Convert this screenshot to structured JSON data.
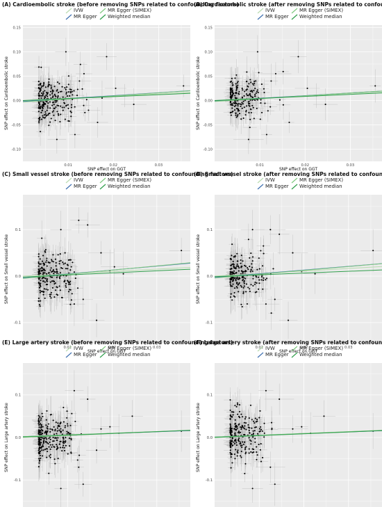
{
  "chart_data": [
    {
      "type": "scatter",
      "title": "(A) Cardioembolic stroke (before removing SNPs related to confounding factors)",
      "xlabel": "SNP effect on GGT",
      "ylabel": "SNP effect on Cardioembolic stroke",
      "xlim": [
        0.0,
        0.037
      ],
      "ylim": [
        -0.125,
        0.155
      ],
      "xticks": [
        0.01,
        0.02,
        0.03
      ],
      "xtick_labels": [
        "0.01",
        "0.02",
        "0.03"
      ],
      "yticks": [
        -0.1,
        -0.05,
        0.0,
        0.05,
        0.1,
        0.15
      ],
      "ytick_labels": [
        "-0.10",
        "-0.05",
        "0.00",
        "0.05",
        "0.10",
        "0.15"
      ],
      "grid": true,
      "legend": [
        "IVW",
        "MR Egger",
        "MR Egger (SIMEX)",
        "Weighted median"
      ],
      "legend_position": "top",
      "lines": [
        {
          "name": "IVW",
          "intercept": 0.0,
          "slope": 0.45
        },
        {
          "name": "MR Egger",
          "intercept": -0.002,
          "slope": 0.6
        },
        {
          "name": "MR Egger (SIMEX)",
          "intercept": -0.003,
          "slope": 0.62
        },
        {
          "name": "Weighted median",
          "intercept": 0.0,
          "slope": 0.4
        }
      ],
      "outliers": [
        [
          0.0355,
          0.03
        ],
        [
          0.0185,
          0.09
        ],
        [
          0.0135,
          0.055
        ],
        [
          0.0115,
          -0.07
        ],
        [
          0.0225,
          0.01
        ],
        [
          0.0245,
          -0.008
        ],
        [
          0.0165,
          -0.045
        ],
        [
          0.0095,
          0.1
        ],
        [
          0.0075,
          -0.08
        ],
        [
          0.0125,
          0.04
        ],
        [
          0.0205,
          0.025
        ],
        [
          0.0145,
          -0.02
        ],
        [
          0.0175,
          0.005
        ]
      ],
      "n_points": 240,
      "seed": 11,
      "y_sd": 0.028,
      "err_y": 0.022
    },
    {
      "type": "scatter",
      "title": "(B) Cardioembolic stroke (after removing SNPs related to confounding factors)",
      "xlabel": "SNP effect on GGT",
      "ylabel": "SNP effect on Cardioembolic stroke",
      "xlim": [
        0.0,
        0.037
      ],
      "ylim": [
        -0.125,
        0.155
      ],
      "xticks": [
        0.01,
        0.02,
        0.03
      ],
      "xtick_labels": [
        "0.01",
        "0.02",
        "0.03"
      ],
      "yticks": [
        -0.1,
        -0.05,
        0.0,
        0.05,
        0.1,
        0.15
      ],
      "ytick_labels": [
        "-0.10",
        "-0.05",
        "0.00",
        "0.05",
        "0.10",
        "0.15"
      ],
      "grid": true,
      "legend": [
        "IVW",
        "MR Egger",
        "MR Egger (SIMEX)",
        "Weighted median"
      ],
      "legend_position": "top",
      "lines": [
        {
          "name": "IVW",
          "intercept": 0.0,
          "slope": 0.48
        },
        {
          "name": "MR Egger",
          "intercept": -0.001,
          "slope": 0.55
        },
        {
          "name": "MR Egger (SIMEX)",
          "intercept": -0.002,
          "slope": 0.58
        },
        {
          "name": "Weighted median",
          "intercept": 0.0,
          "slope": 0.42
        }
      ],
      "outliers": [
        [
          0.0355,
          0.03
        ],
        [
          0.0185,
          0.09
        ],
        [
          0.0135,
          0.055
        ],
        [
          0.0115,
          -0.07
        ],
        [
          0.0225,
          0.01
        ],
        [
          0.0245,
          -0.008
        ],
        [
          0.0165,
          -0.045
        ],
        [
          0.0095,
          0.1
        ],
        [
          0.0075,
          -0.08
        ],
        [
          0.0125,
          0.04
        ],
        [
          0.0205,
          0.025
        ]
      ],
      "n_points": 210,
      "seed": 23,
      "y_sd": 0.028,
      "err_y": 0.022
    },
    {
      "type": "scatter",
      "title": "(C) Small vessel stroke (before removing SNPs related to confounding factors)",
      "xlabel": "SNP effect on GGT",
      "ylabel": "SNP effect on Small vessel stroke",
      "xlim": [
        0.0,
        0.0375
      ],
      "ylim": [
        -0.145,
        0.175
      ],
      "xticks": [
        0.01,
        0.02,
        0.03
      ],
      "xtick_labels": [
        "0.01",
        "0.02",
        "0.03"
      ],
      "yticks": [
        -0.1,
        0.0,
        0.1
      ],
      "ytick_labels": [
        "-0.1",
        "0.0",
        "0.1"
      ],
      "grid": true,
      "legend": [
        "IVW",
        "MR Egger",
        "MR Egger (SIMEX)",
        "Weighted median"
      ],
      "legend_position": "top",
      "lines": [
        {
          "name": "IVW",
          "intercept": 0.0,
          "slope": 0.5
        },
        {
          "name": "MR Egger",
          "intercept": -0.004,
          "slope": 0.85
        },
        {
          "name": "MR Egger (SIMEX)",
          "intercept": -0.005,
          "slope": 0.9
        },
        {
          "name": "Weighted median",
          "intercept": -0.002,
          "slope": 0.45
        }
      ],
      "outliers": [
        [
          0.0355,
          0.055
        ],
        [
          0.0175,
          0.05
        ],
        [
          0.0125,
          0.12
        ],
        [
          0.0145,
          0.11
        ],
        [
          0.0165,
          -0.095
        ],
        [
          0.0195,
          0.01
        ],
        [
          0.0225,
          0.005
        ],
        [
          0.0115,
          -0.06
        ],
        [
          0.0085,
          0.1
        ],
        [
          0.0135,
          -0.05
        ],
        [
          0.0205,
          0.02
        ]
      ],
      "n_points": 230,
      "seed": 37,
      "y_sd": 0.03,
      "err_y": 0.028
    },
    {
      "type": "scatter",
      "title": "(D) Small vessel stroke (after removing SNPs related to confounding factors)",
      "xlabel": "SNP effect on GGT",
      "ylabel": "SNP effect on Small vessel stroke",
      "xlim": [
        0.0,
        0.0375
      ],
      "ylim": [
        -0.145,
        0.175
      ],
      "xticks": [
        0.01,
        0.02,
        0.03
      ],
      "xtick_labels": [
        "0.01",
        "0.02",
        "0.03"
      ],
      "yticks": [
        -0.1,
        0.0,
        0.1
      ],
      "ytick_labels": [
        "-0.1",
        "0.0",
        "0.1"
      ],
      "grid": true,
      "legend": [
        "IVW",
        "MR Egger",
        "MR Egger (SIMEX)",
        "Weighted median"
      ],
      "legend_position": "top",
      "lines": [
        {
          "name": "IVW",
          "intercept": 0.0,
          "slope": 0.55
        },
        {
          "name": "MR Egger",
          "intercept": -0.003,
          "slope": 0.8
        },
        {
          "name": "MR Egger (SIMEX)",
          "intercept": -0.004,
          "slope": 0.82
        },
        {
          "name": "Weighted median",
          "intercept": -0.001,
          "slope": 0.38
        }
      ],
      "outliers": [
        [
          0.0355,
          0.055
        ],
        [
          0.0175,
          0.05
        ],
        [
          0.0125,
          0.1
        ],
        [
          0.0145,
          0.09
        ],
        [
          0.0165,
          -0.095
        ],
        [
          0.0195,
          0.01
        ],
        [
          0.0225,
          0.005
        ],
        [
          0.0115,
          -0.06
        ],
        [
          0.0085,
          0.1
        ],
        [
          0.0135,
          -0.05
        ]
      ],
      "n_points": 205,
      "seed": 41,
      "y_sd": 0.03,
      "err_y": 0.028
    },
    {
      "type": "scatter",
      "title": "(E) Large artery stroke (before removing SNPs related to confounding factors)",
      "xlabel": "SNP effect on GGT",
      "ylabel": "SNP effect on Large artery stroke",
      "xlim": [
        0.0,
        0.0375
      ],
      "ylim": [
        -0.175,
        0.175
      ],
      "xticks": [
        0.01,
        0.02,
        0.03
      ],
      "xtick_labels": [
        "0.01",
        "0.02",
        "0.03"
      ],
      "yticks": [
        -0.1,
        0.0,
        0.1
      ],
      "ytick_labels": [
        "-0.1",
        "0.0",
        "0.1"
      ],
      "grid": true,
      "legend": [
        "IVW",
        "MR Egger",
        "MR Egger (SIMEX)",
        "Weighted median"
      ],
      "legend_position": "top",
      "lines": [
        {
          "name": "IVW",
          "intercept": 0.0,
          "slope": 0.45
        },
        {
          "name": "MR Egger",
          "intercept": 0.002,
          "slope": 0.38
        },
        {
          "name": "MR Egger (SIMEX)",
          "intercept": 0.002,
          "slope": 0.4
        },
        {
          "name": "Weighted median",
          "intercept": 0.001,
          "slope": 0.42
        }
      ],
      "outliers": [
        [
          0.0355,
          0.015
        ],
        [
          0.0245,
          0.05
        ],
        [
          0.0135,
          -0.11
        ],
        [
          0.0145,
          0.09
        ],
        [
          0.0175,
          0.02
        ],
        [
          0.0195,
          0.025
        ],
        [
          0.0215,
          0.01
        ],
        [
          0.0085,
          -0.12
        ],
        [
          0.0115,
          0.11
        ],
        [
          0.0125,
          -0.07
        ],
        [
          0.0165,
          -0.03
        ]
      ],
      "n_points": 260,
      "seed": 53,
      "y_sd": 0.035,
      "err_y": 0.03
    },
    {
      "type": "scatter",
      "title": "(F) Large artery stroke (after removing SNPs related to confounding factors)",
      "xlabel": "SNP effect on GGT",
      "ylabel": "SNP effect on Large artery stroke",
      "xlim": [
        0.0,
        0.0375
      ],
      "ylim": [
        -0.175,
        0.175
      ],
      "xticks": [
        0.01,
        0.02,
        0.03
      ],
      "xtick_labels": [
        "0.01",
        "0.02",
        "0.03"
      ],
      "yticks": [
        -0.1,
        0.0,
        0.1
      ],
      "ytick_labels": [
        "-0.1",
        "0.0",
        "0.1"
      ],
      "grid": true,
      "legend": [
        "IVW",
        "MR Egger",
        "MR Egger (SIMEX)",
        "Weighted median"
      ],
      "legend_position": "top",
      "lines": [
        {
          "name": "IVW",
          "intercept": 0.0,
          "slope": 0.45
        },
        {
          "name": "MR Egger",
          "intercept": 0.001,
          "slope": 0.4
        },
        {
          "name": "MR Egger (SIMEX)",
          "intercept": 0.001,
          "slope": 0.42
        },
        {
          "name": "Weighted median",
          "intercept": 0.0,
          "slope": 0.43
        }
      ],
      "outliers": [
        [
          0.0355,
          0.015
        ],
        [
          0.0245,
          0.05
        ],
        [
          0.0135,
          -0.11
        ],
        [
          0.0145,
          0.09
        ],
        [
          0.0175,
          0.02
        ],
        [
          0.0195,
          0.025
        ],
        [
          0.0215,
          0.01
        ],
        [
          0.0085,
          -0.12
        ],
        [
          0.0115,
          0.11
        ],
        [
          0.0125,
          -0.07
        ]
      ],
      "n_points": 235,
      "seed": 67,
      "y_sd": 0.035,
      "err_y": 0.03
    }
  ],
  "colors": {
    "panel_bg": "#ebebeb",
    "grid": "#ffffff",
    "point": "#000000",
    "error_bar": "#b3b3b3",
    "line_ivw": "#b9dcb0",
    "line_mr_egger": "#3d6fb0",
    "line_mr_egger_simex": "#7fc97f",
    "line_weighted_median": "#2e9e4a"
  }
}
